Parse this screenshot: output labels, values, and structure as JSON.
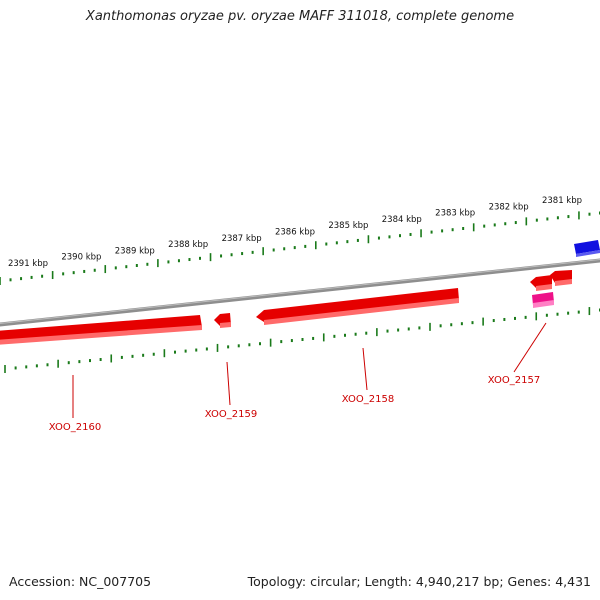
{
  "title": "Xanthomonas oryzae pv. oryzae MAFF 311018, complete genome",
  "footer": {
    "accession": "Accession: NC_007705",
    "summary": "Topology: circular; Length: 4,940,217 bp; Genes: 4,431"
  },
  "colors": {
    "forward_gene": "#e00000",
    "reverse_gene": "#e00000",
    "rna_gene": "#ee1188",
    "other_gene": "#1010e0",
    "tick": "#1a7a1a",
    "backbone": "#8a8a8a",
    "label": "#cc0000"
  },
  "scale": {
    "unit": "kbp",
    "labels": [
      "2381 kbp",
      "2382 kbp",
      "2383 kbp",
      "2384 kbp",
      "2385 kbp",
      "2386 kbp",
      "2387 kbp",
      "2388 kbp",
      "2389 kbp",
      "2390 kbp",
      "2391 kbp"
    ]
  },
  "genes": [
    {
      "name": "XOO_2157",
      "strand": "-",
      "type": "CDS"
    },
    {
      "name": "XOO_2158",
      "strand": "-",
      "type": "CDS"
    },
    {
      "name": "XOO_2159",
      "strand": "-",
      "type": "CDS"
    },
    {
      "name": "XOO_2160",
      "strand": "-",
      "type": "CDS"
    }
  ]
}
